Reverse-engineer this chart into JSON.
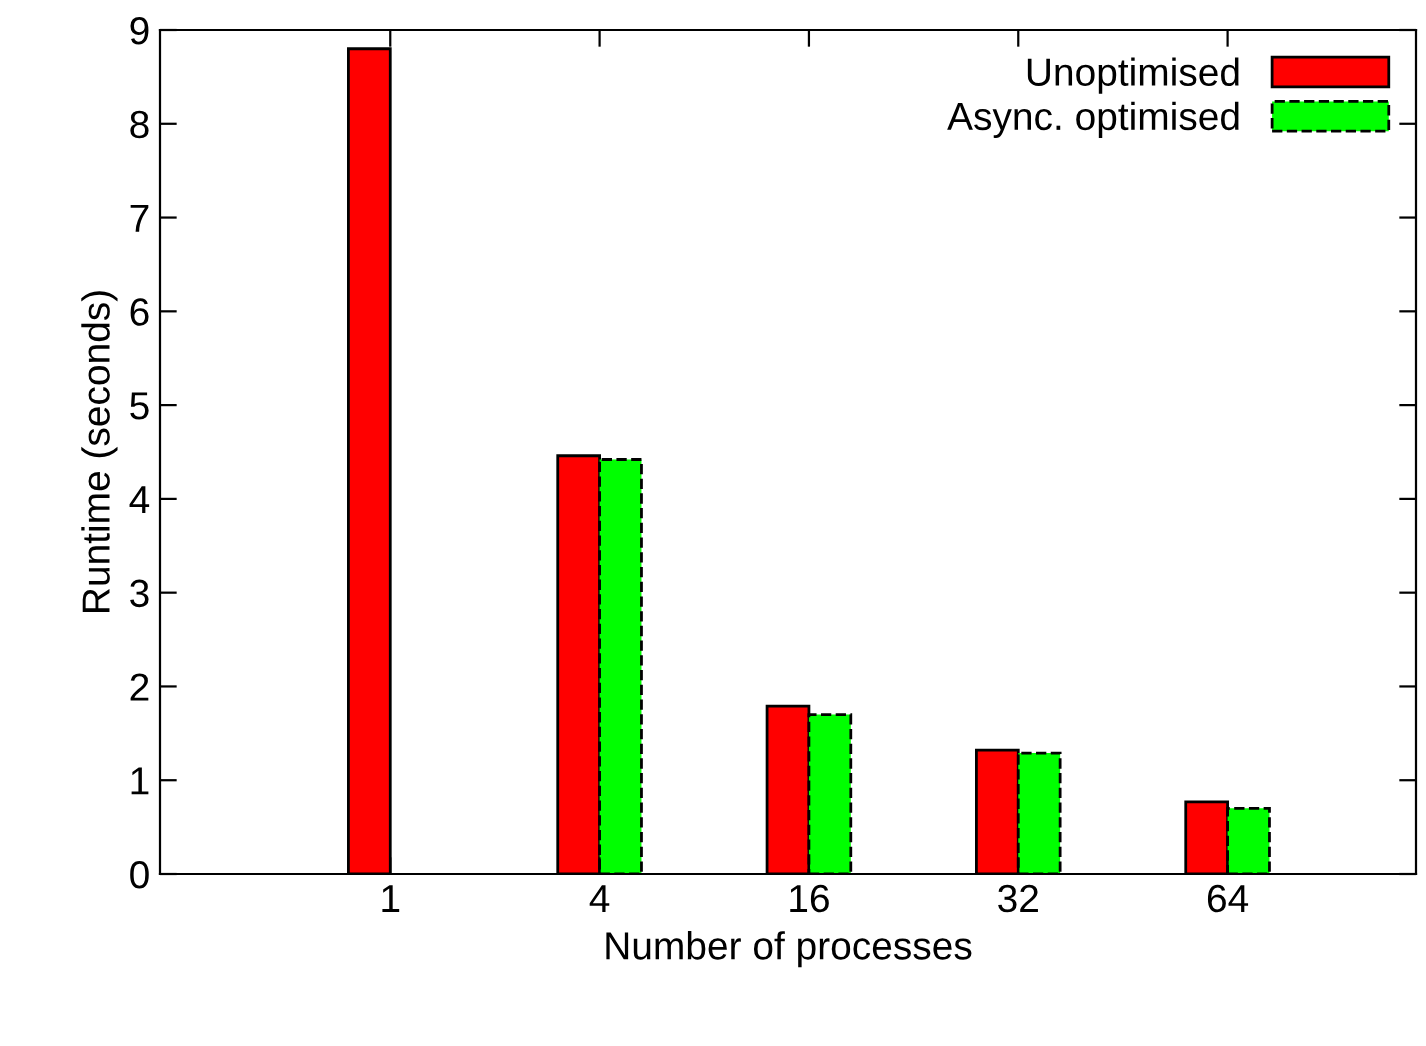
{
  "chart_data": {
    "type": "bar",
    "xlabel": "Number of processes",
    "ylabel": "Runtime (seconds)",
    "categories": [
      "1",
      "4",
      "16",
      "32",
      "64"
    ],
    "series": [
      {
        "name": "Unoptimised",
        "color": "#ff0000",
        "line_style": "solid",
        "values": [
          8.8,
          4.46,
          1.79,
          1.32,
          0.77
        ]
      },
      {
        "name": "Async. optimised",
        "color": "#00ff00",
        "line_style": "dashed",
        "values": [
          null,
          4.42,
          1.7,
          1.29,
          0.7
        ]
      }
    ],
    "ylim": [
      0,
      9
    ],
    "yticks": [
      0,
      1,
      2,
      3,
      4,
      5,
      6,
      7,
      8,
      9
    ],
    "grid": false,
    "legend": "top right"
  }
}
